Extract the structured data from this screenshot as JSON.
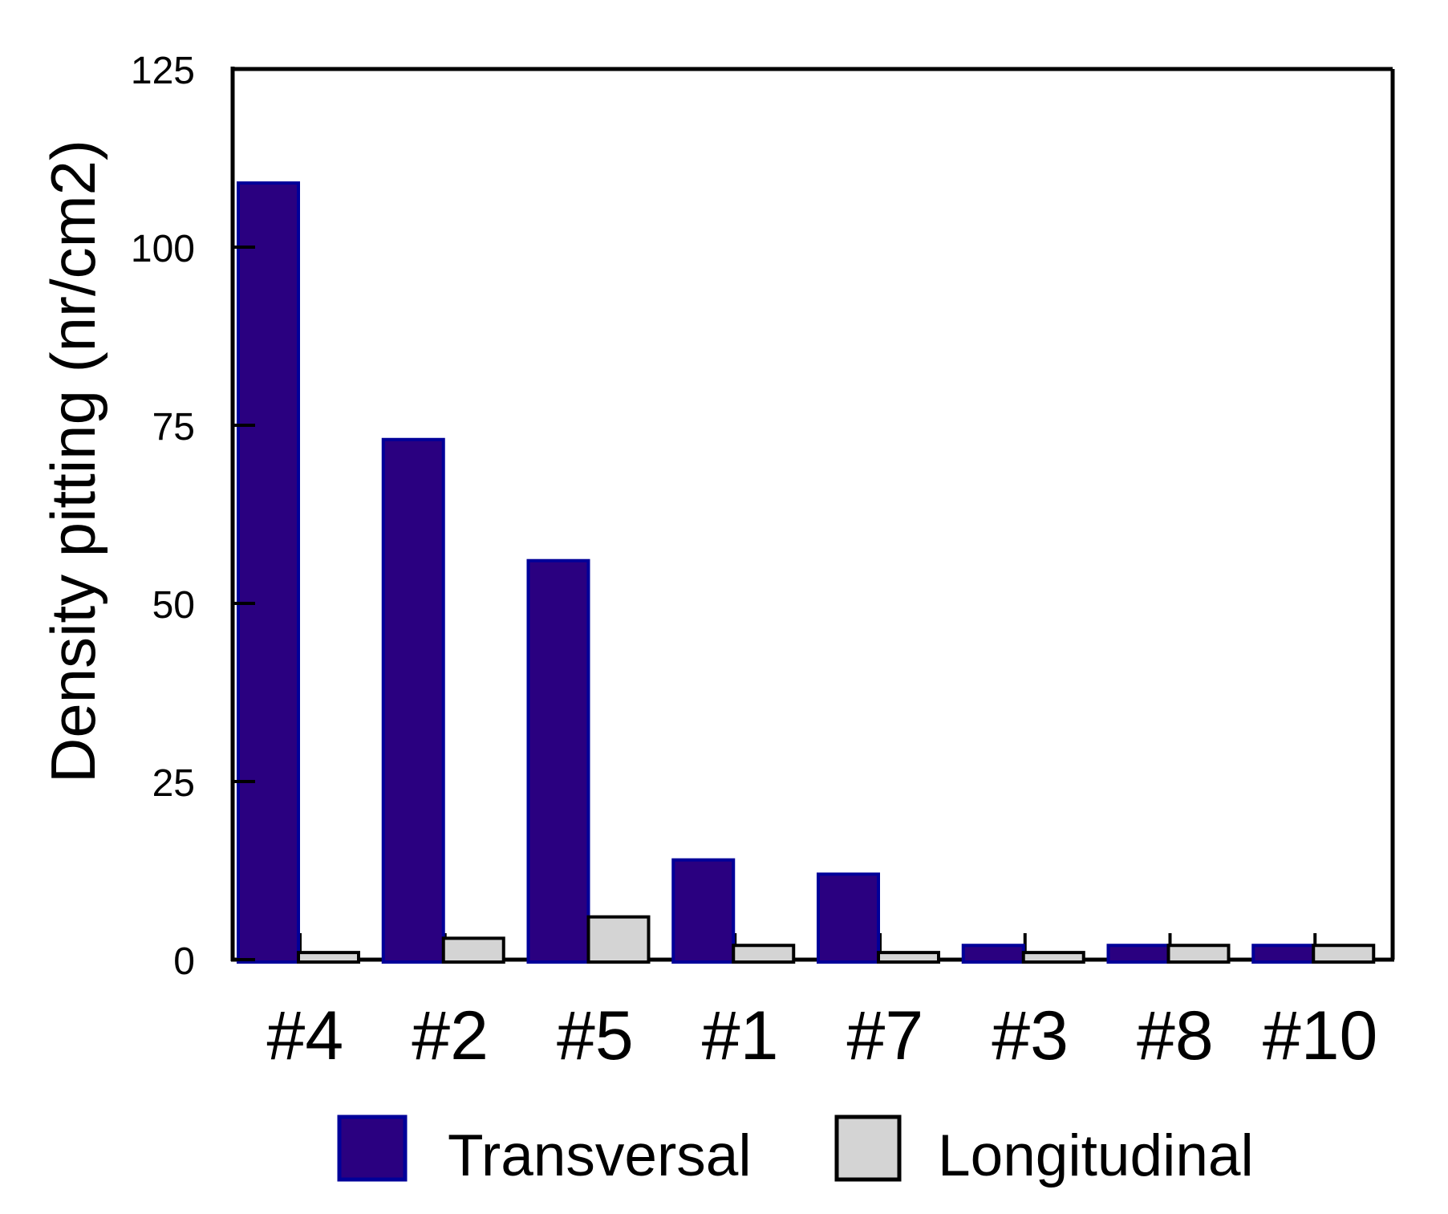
{
  "chart_data": {
    "type": "bar",
    "title": "",
    "xlabel": "",
    "ylabel": "Density pitting (nr/cm2)",
    "categories": [
      "#4",
      "#2",
      "#5",
      "#1",
      "#7",
      "#3",
      "#8",
      "#10"
    ],
    "series": [
      {
        "name": "Transversal",
        "color": "#2A0080",
        "border_color": "#000099",
        "values": [
          109,
          73,
          56,
          14,
          12,
          2,
          2,
          2
        ]
      },
      {
        "name": "Longitudinal",
        "color": "#D4D4D4",
        "border_color": "#000000",
        "values": [
          1,
          3,
          6,
          2,
          1,
          1,
          2,
          2
        ]
      }
    ],
    "ylim": [
      0,
      125
    ],
    "yticks": [
      0,
      25,
      50,
      75,
      100,
      125
    ],
    "grid": false,
    "legend_position": "bottom",
    "background_color": "#FFFFFF",
    "axis_color": "#000000",
    "text_color": "#000000"
  }
}
